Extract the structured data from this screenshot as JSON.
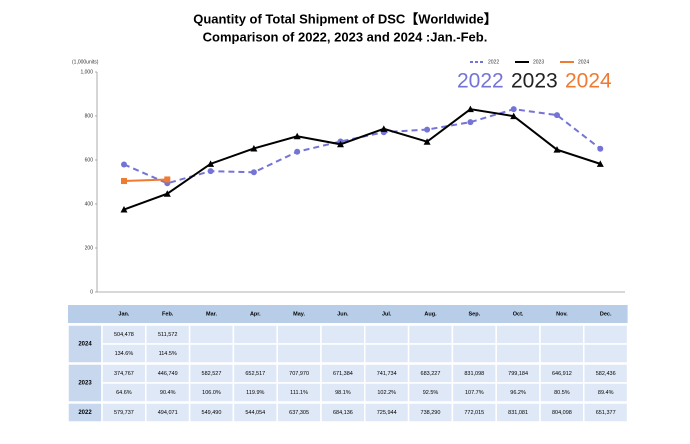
{
  "chart_data": {
    "type": "line",
    "title": [
      "Quantity of Total Shipment of DSC【Worldwide】",
      "Comparison of 2022, 2023 and 2024 :Jan.-Feb."
    ],
    "y_label": "(1,000units)",
    "categories": [
      "Jan.",
      "Feb.",
      "Mar.",
      "Apr.",
      "May.",
      "Jun.",
      "Jul.",
      "Aug.",
      "Sep.",
      "Oct.",
      "Nov.",
      "Dec."
    ],
    "ylim": [
      0,
      1000
    ],
    "yticks": [
      0,
      200,
      400,
      600,
      800,
      {
        "value": 1000,
        "label": "1,000"
      }
    ],
    "grid": false,
    "legend": "top-right",
    "series": [
      {
        "name": "2022",
        "color": "#7474d6",
        "dash": true,
        "marker": "circle",
        "values": [
          579.737,
          494.071,
          549.49,
          544.054,
          637.305,
          684.136,
          725.944,
          738.29,
          772.015,
          831.081,
          804.098,
          651.377
        ]
      },
      {
        "name": "2023",
        "color": "#000000",
        "dash": false,
        "marker": "triangle",
        "values": [
          374.767,
          446.749,
          582.527,
          652.517,
          707.97,
          671.384,
          741.734,
          683.227,
          831.098,
          799.184,
          646.912,
          582.436
        ]
      },
      {
        "name": "2024",
        "color": "#f07a30",
        "dash": false,
        "marker": "square",
        "values": [
          504.478,
          511.572,
          null,
          null,
          null,
          null,
          null,
          null,
          null,
          null,
          null,
          null
        ]
      }
    ],
    "annotations": [
      {
        "text": "2022",
        "color": "#7474d6"
      },
      {
        "text": "2023",
        "color": "#222222"
      },
      {
        "text": "2024",
        "color": "#f07a30"
      }
    ]
  },
  "table": {
    "groups": [
      {
        "label": "2024",
        "rows": [
          [
            "504,478",
            "511,572"
          ],
          [
            "134.6%",
            "114.5%"
          ]
        ]
      },
      {
        "label": "2023",
        "rows": [
          [
            "374,767",
            "446,749",
            "582,527",
            "652,517",
            "707,970",
            "671,384",
            "741,734",
            "683,227",
            "831,098",
            "799,184",
            "646,912",
            "582,436"
          ],
          [
            "64.6%",
            "90.4%",
            "106.0%",
            "119.9%",
            "111.1%",
            "98.1%",
            "102.2%",
            "92.5%",
            "107.7%",
            "96.2%",
            "80.5%",
            "89.4%"
          ]
        ]
      },
      {
        "label": "2022",
        "rows": [
          [
            "579,737",
            "494,071",
            "549,490",
            "544,054",
            "637,305",
            "684,136",
            "725,944",
            "738,290",
            "772,015",
            "831,081",
            "804,098",
            "651,377"
          ]
        ]
      }
    ]
  }
}
